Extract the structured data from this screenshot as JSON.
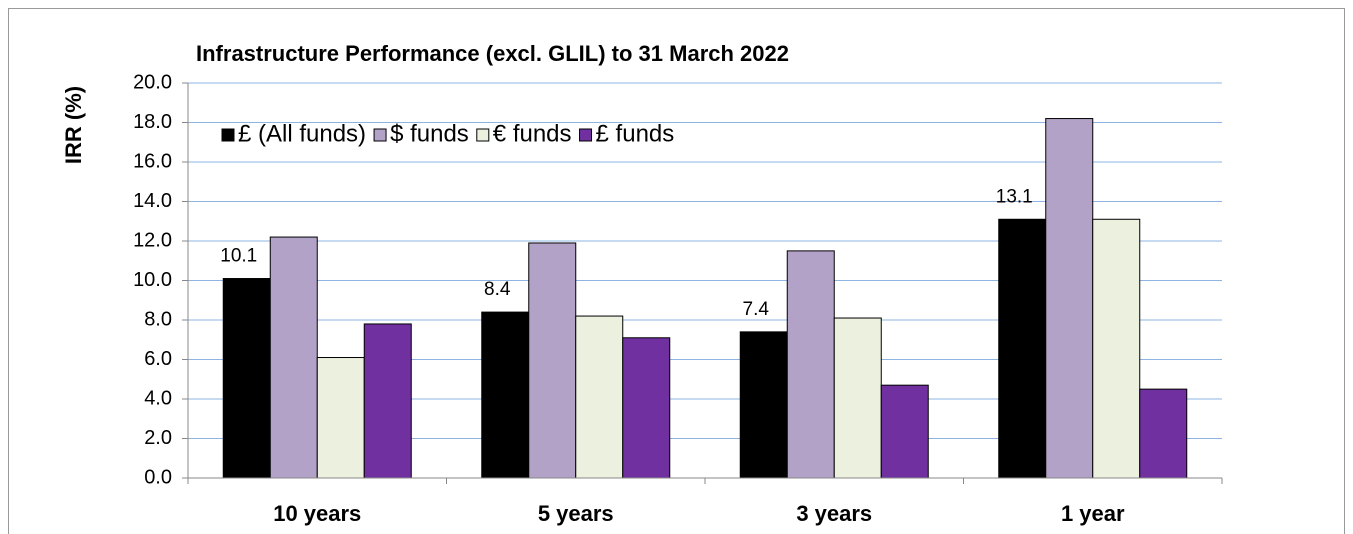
{
  "chart_data": {
    "type": "bar",
    "title": "Infrastructure Performance (excl. GLIL) to 31 March 2022",
    "y_label": "IRR (%)",
    "categories": [
      "10 years",
      "5 years",
      "3 years",
      "1 year"
    ],
    "series": [
      {
        "name": "£ (All funds)",
        "color": "#000000",
        "values": [
          10.1,
          8.4,
          7.4,
          13.1
        ],
        "show_labels": true
      },
      {
        "name": "$ funds",
        "color": "#b3a2c7",
        "values": [
          12.2,
          11.9,
          11.5,
          18.2
        ]
      },
      {
        "name": "€ funds",
        "color": "#ebf1de",
        "values": [
          6.1,
          8.2,
          8.1,
          13.1
        ]
      },
      {
        "name": "£ funds",
        "color": "#7030a0",
        "values": [
          7.8,
          7.1,
          4.7,
          4.5
        ]
      }
    ],
    "ylim": [
      0,
      20
    ],
    "yticks": [
      {
        "value": 0,
        "label": "0.0"
      },
      {
        "value": 2,
        "label": "2.0"
      },
      {
        "value": 4,
        "label": "4.0"
      },
      {
        "value": 6,
        "label": "6.0"
      },
      {
        "value": 8,
        "label": "8.0"
      },
      {
        "value": 10,
        "label": "10.0"
      },
      {
        "value": 12,
        "label": "12.0"
      },
      {
        "value": 14,
        "label": "14.0"
      },
      {
        "value": 16,
        "label": "16.0"
      },
      {
        "value": 18,
        "label": "18.0"
      },
      {
        "value": 20,
        "label": "20.0"
      }
    ],
    "grid": true,
    "legend": "top"
  }
}
